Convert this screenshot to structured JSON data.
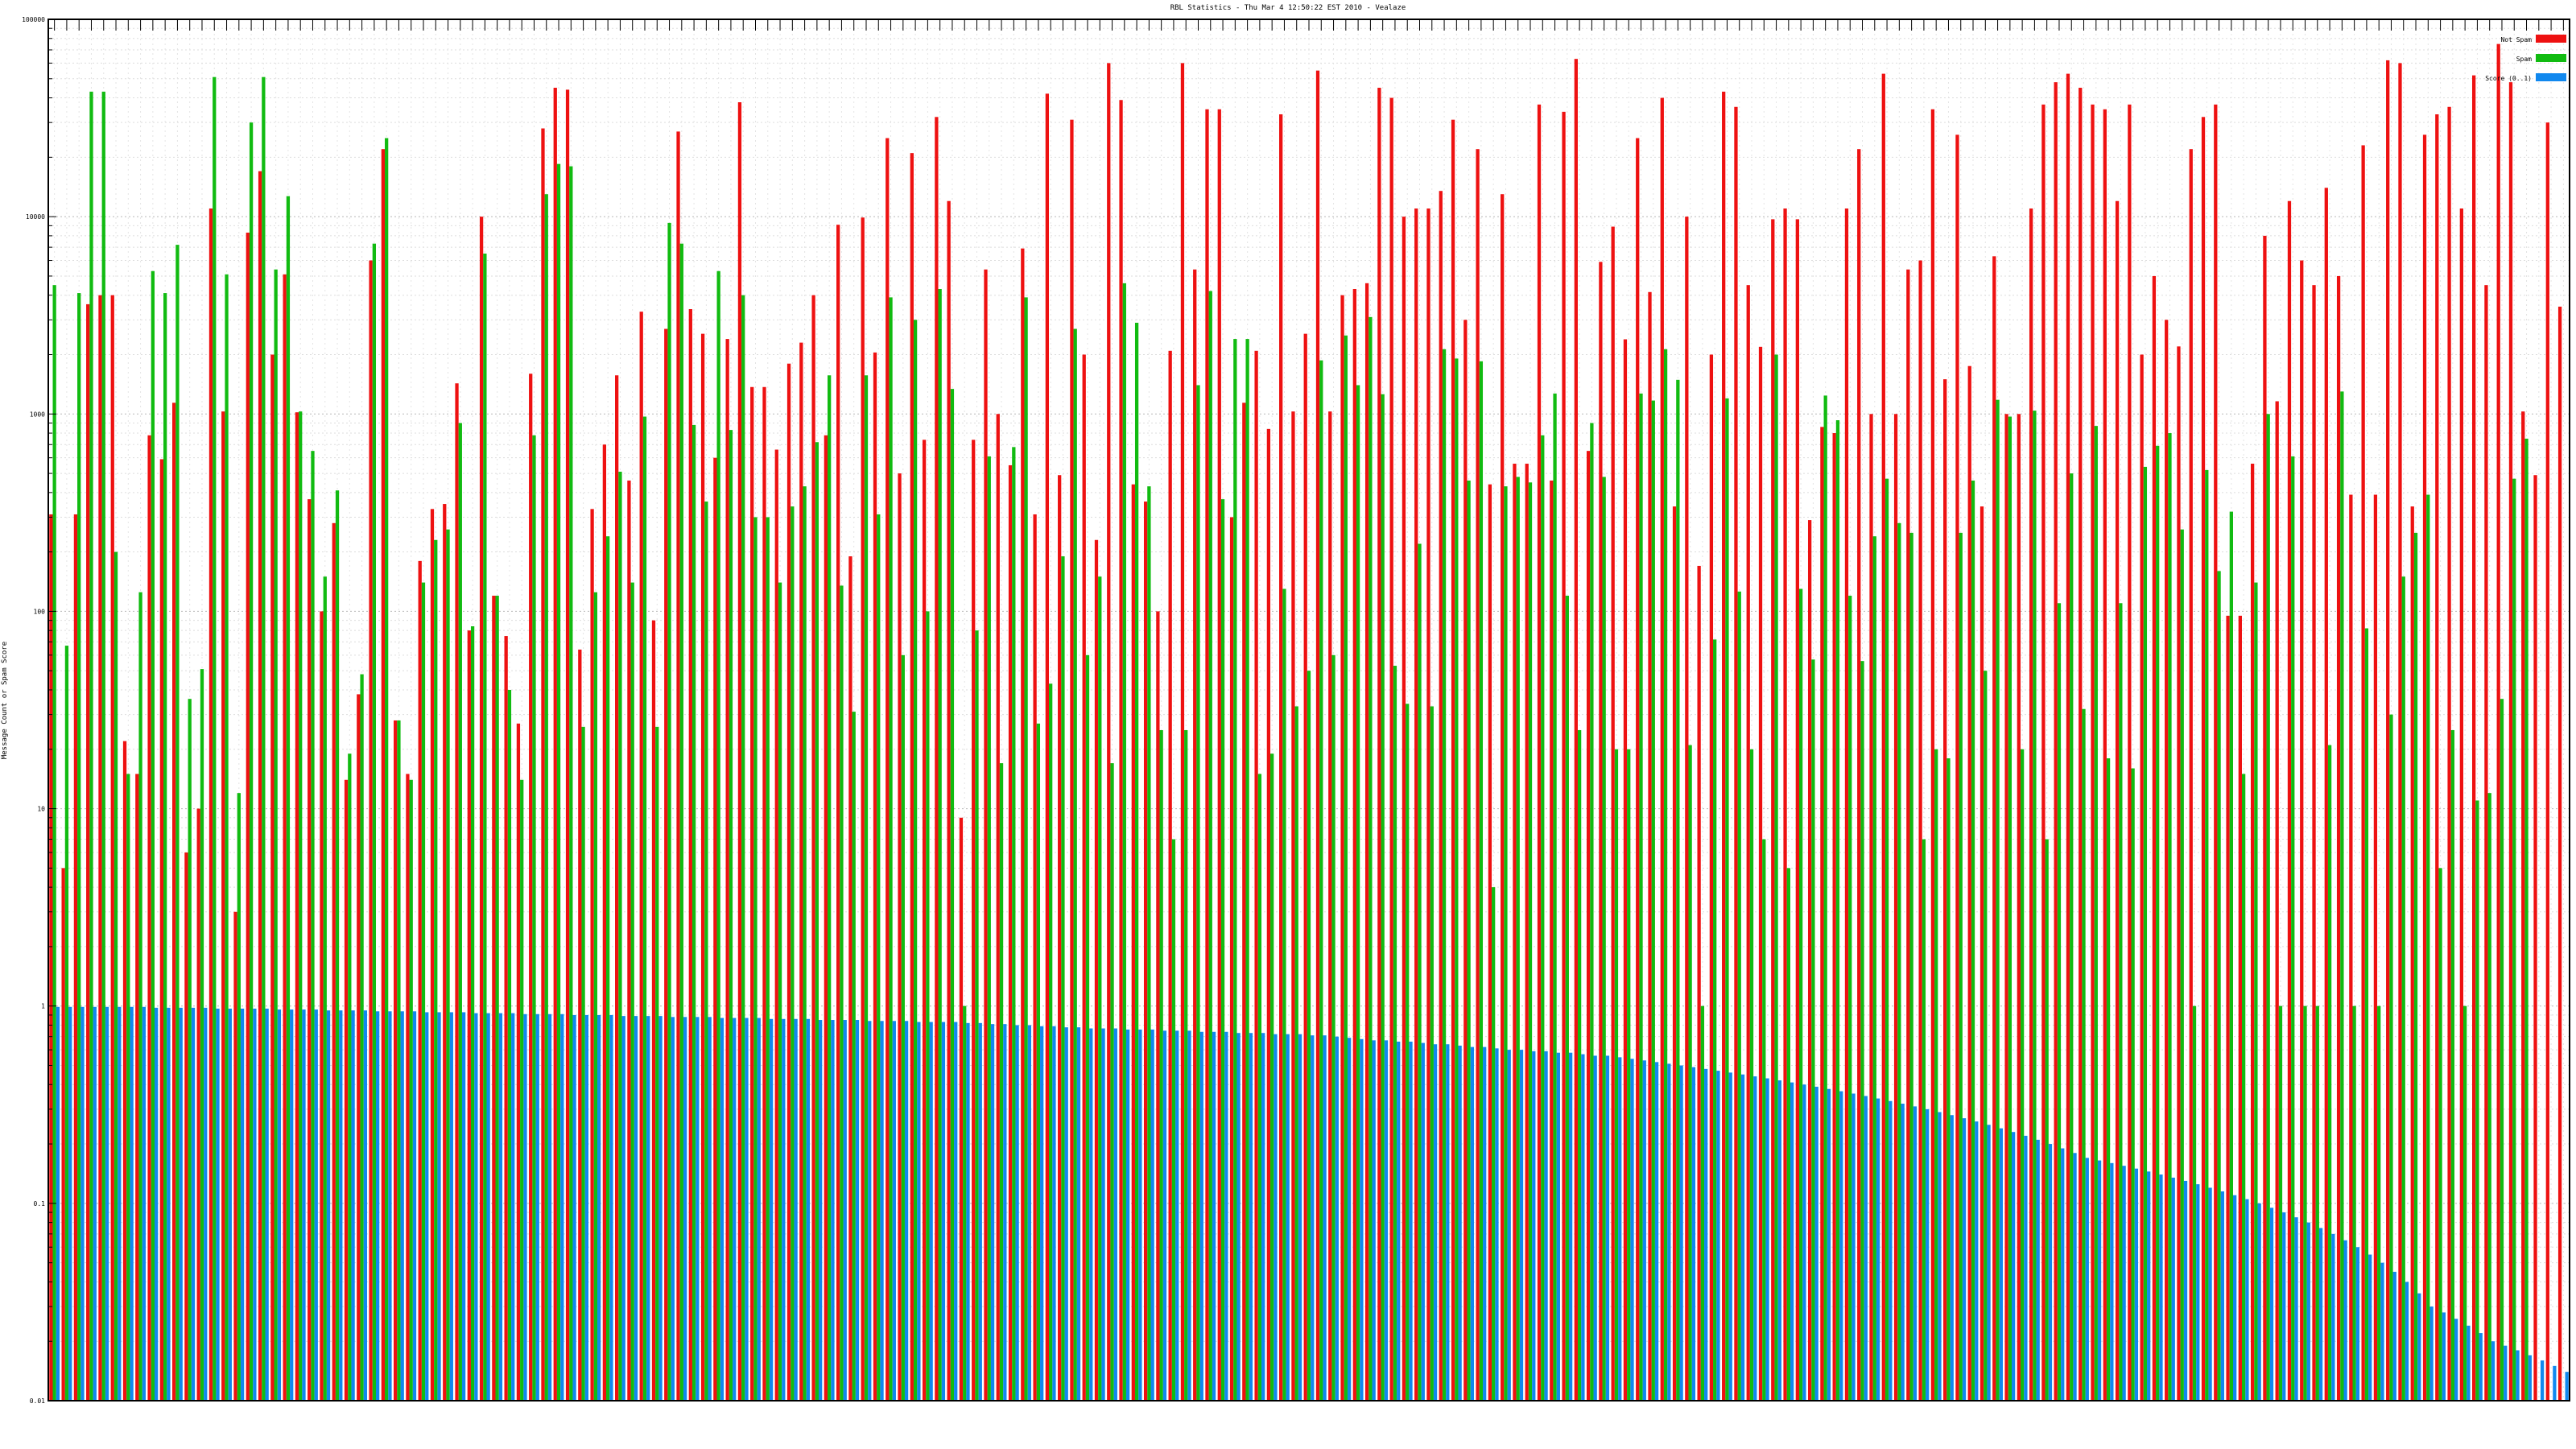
{
  "chart_data": {
    "type": "bar",
    "title": "RBL Statistics - Thu Mar  4 12:50:22 EST 2010 - Vealaze",
    "ylabel": "Message Count or Spam Score",
    "xlabel": "",
    "yscale": "log",
    "ylim": [
      0.01,
      100000
    ],
    "yticks": [
      "0.01",
      "0.1",
      "1",
      "10",
      "100",
      "1000",
      "10000",
      "100000"
    ],
    "legend_position": "top-right",
    "grid": true,
    "colors": {
      "Not Spam": "#ee1111",
      "Spam": "#11bb11",
      "Score (0..1)": "#1188ee"
    },
    "series": [
      {
        "name": "Not Spam",
        "values": [
          310,
          5,
          310,
          3600,
          4000,
          4000,
          22,
          15,
          780,
          590,
          1140,
          6,
          10,
          11000,
          1030,
          3,
          8300,
          17000,
          2000,
          5100,
          1020,
          370,
          100,
          280,
          14,
          38,
          6000,
          22000,
          28,
          15,
          180,
          330,
          350,
          1430,
          80,
          10000,
          120,
          75,
          27,
          1600,
          28000,
          45000,
          44000,
          64,
          330,
          700,
          1570,
          460,
          3300,
          90,
          2700,
          27000,
          3400,
          2550,
          600,
          2400,
          38000,
          1370,
          1370,
          660,
          1800,
          2300,
          4000,
          780,
          9100,
          190,
          9900,
          2050,
          25000,
          500,
          21000,
          740,
          32000,
          12000,
          9,
          740,
          5400,
          1000,
          550,
          6900,
          310,
          42000,
          490,
          31000,
          2000,
          230,
          60000,
          39000,
          440,
          360,
          100,
          2090,
          60000,
          5400,
          35000,
          35000,
          300,
          1140,
          2090,
          840,
          33000,
          1030,
          2550,
          55000,
          1030,
          4000,
          4300,
          4600,
          45000,
          40000,
          10000,
          11000,
          11000,
          13500,
          31000,
          3000,
          22000,
          440,
          13000,
          560,
          560,
          37000,
          460,
          34000,
          63000,
          650,
          5900,
          8900,
          2390,
          25000,
          4150,
          40000,
          340,
          10000,
          170,
          2000,
          43000,
          36000,
          4500,
          2190,
          9700,
          11000,
          9700,
          290,
          860,
          800,
          11000,
          22000,
          1000,
          53000,
          1000,
          5400,
          6000,
          35000,
          1500,
          26000,
          1750,
          340,
          6300,
          1000,
          1000,
          11000,
          37000,
          48000,
          53000,
          45000,
          37000,
          35000,
          12000,
          37000,
          2000,
          5000,
          3000,
          2200,
          22000,
          32000,
          37000,
          95,
          95,
          560,
          8000,
          1160,
          12000,
          6000,
          4500,
          14000,
          5000,
          390,
          23000,
          390,
          62000,
          60000,
          340,
          26000,
          33000,
          36000,
          11000,
          52000,
          4500,
          75000,
          48000,
          1030,
          490,
          30000,
          3500
        ],
        "cap": [
          0,
          0,
          0,
          0,
          0,
          0,
          0,
          0,
          0,
          0,
          0,
          0,
          0,
          0,
          0,
          0,
          0,
          0,
          0,
          0,
          0,
          0,
          0,
          0,
          0,
          0,
          0,
          0,
          0,
          0,
          0,
          0,
          0,
          0,
          0,
          0,
          0,
          0,
          0,
          0,
          0,
          0,
          0,
          0,
          0,
          0,
          0,
          0,
          0,
          0,
          0,
          0,
          0,
          0,
          0,
          0,
          0,
          0,
          0,
          0,
          0,
          0,
          0,
          0,
          0,
          0,
          0,
          0,
          0,
          0,
          0,
          0,
          0,
          0,
          0,
          0,
          0,
          0,
          0,
          0,
          0,
          0,
          0,
          0,
          0,
          0,
          0,
          0,
          0,
          0,
          0,
          0,
          0,
          0,
          0,
          0,
          0,
          0,
          0,
          0,
          0,
          0,
          0,
          0,
          0,
          0,
          0,
          0,
          0,
          0,
          0,
          0,
          0,
          0,
          0,
          0,
          0,
          0,
          0,
          0,
          0,
          0,
          0,
          0,
          0,
          0,
          0,
          0,
          0,
          0,
          0,
          0,
          0,
          0,
          0,
          0,
          0,
          0,
          0,
          0,
          0,
          0,
          0,
          0,
          0,
          0,
          0,
          0,
          0,
          0,
          0,
          0,
          0,
          0,
          0,
          0,
          0,
          0,
          0,
          0,
          0,
          0,
          0,
          0,
          0,
          0,
          0,
          0,
          0,
          0,
          0,
          0,
          0,
          0,
          0,
          0,
          0,
          0,
          0,
          0,
          0,
          0,
          0,
          0,
          0,
          0,
          0,
          0,
          0,
          0,
          0,
          0,
          0,
          0,
          0,
          0,
          0,
          0,
          0,
          0,
          0,
          0,
          0,
          0,
          0,
          0,
          0,
          0,
          0,
          0,
          0,
          0,
          0
        ]
      },
      {
        "name": "Spam",
        "values": [
          4500,
          67,
          4100,
          43000,
          43000,
          200,
          15,
          125,
          5300,
          4100,
          7200,
          36,
          51,
          51000,
          5100,
          12,
          30000,
          51000,
          5400,
          12700,
          1030,
          650,
          150,
          410,
          19,
          48,
          7300,
          25000,
          28,
          14,
          140,
          230,
          260,
          900,
          84,
          6500,
          120,
          40,
          14,
          780,
          13000,
          18500,
          18000,
          26,
          125,
          240,
          510,
          140,
          970,
          26,
          9300,
          7300,
          880,
          360,
          5300,
          830,
          4000,
          300,
          300,
          140,
          340,
          430,
          720,
          1570,
          135,
          31,
          1570,
          310,
          3900,
          60,
          3000,
          100,
          4300,
          1340,
          1,
          80,
          610,
          17,
          680,
          3900,
          27,
          43,
          190,
          2700,
          60,
          150,
          17,
          4600,
          2900,
          430,
          25,
          7,
          25,
          1400,
          4200,
          370,
          2400,
          2400,
          15,
          19,
          130,
          33,
          50,
          1870,
          60,
          2500,
          1400,
          3100,
          1260,
          53,
          34,
          220,
          33,
          2130,
          1910,
          460,
          1850,
          4,
          430,
          480,
          450,
          780,
          1270,
          120,
          25,
          900,
          480,
          20,
          20,
          1270,
          1170,
          2130,
          1490,
          21,
          1,
          72,
          1200,
          126,
          20,
          7,
          2000,
          5,
          130,
          57,
          1240,
          930,
          120,
          56,
          240,
          470,
          280,
          250,
          7,
          20,
          18,
          250,
          460,
          50,
          1180,
          970,
          20,
          1040,
          7,
          110,
          500,
          32,
          870,
          18,
          110,
          16,
          540,
          690,
          800,
          260,
          1,
          520,
          160,
          320,
          15,
          140,
          1000,
          1,
          610,
          1,
          1,
          21,
          1300,
          1,
          82,
          1,
          30,
          150,
          250,
          390,
          5,
          25,
          1,
          11,
          12,
          36,
          470,
          750,
          0,
          0,
          0,
          0,
          0,
          0,
          0,
          0,
          0,
          0,
          0,
          0,
          0,
          0,
          0
        ]
      },
      {
        "name": "Score (0..1)",
        "values": [
          0.99,
          0.99,
          0.99,
          0.99,
          0.99,
          0.99,
          0.99,
          0.99,
          0.98,
          0.98,
          0.98,
          0.98,
          0.98,
          0.97,
          0.97,
          0.97,
          0.97,
          0.97,
          0.96,
          0.96,
          0.96,
          0.96,
          0.95,
          0.95,
          0.95,
          0.95,
          0.94,
          0.94,
          0.94,
          0.94,
          0.93,
          0.93,
          0.93,
          0.93,
          0.92,
          0.92,
          0.92,
          0.92,
          0.91,
          0.91,
          0.91,
          0.91,
          0.9,
          0.9,
          0.9,
          0.9,
          0.89,
          0.89,
          0.89,
          0.89,
          0.88,
          0.88,
          0.88,
          0.88,
          0.87,
          0.87,
          0.87,
          0.87,
          0.86,
          0.86,
          0.86,
          0.86,
          0.85,
          0.85,
          0.85,
          0.85,
          0.84,
          0.84,
          0.84,
          0.84,
          0.83,
          0.83,
          0.83,
          0.83,
          0.82,
          0.82,
          0.81,
          0.81,
          0.8,
          0.8,
          0.79,
          0.79,
          0.78,
          0.78,
          0.77,
          0.77,
          0.77,
          0.76,
          0.76,
          0.76,
          0.75,
          0.75,
          0.75,
          0.74,
          0.74,
          0.74,
          0.73,
          0.73,
          0.73,
          0.72,
          0.72,
          0.72,
          0.71,
          0.71,
          0.7,
          0.69,
          0.68,
          0.67,
          0.67,
          0.66,
          0.66,
          0.65,
          0.64,
          0.64,
          0.63,
          0.62,
          0.62,
          0.61,
          0.6,
          0.6,
          0.59,
          0.59,
          0.58,
          0.58,
          0.57,
          0.56,
          0.56,
          0.55,
          0.54,
          0.53,
          0.52,
          0.51,
          0.5,
          0.49,
          0.48,
          0.47,
          0.46,
          0.45,
          0.44,
          0.43,
          0.42,
          0.41,
          0.4,
          0.39,
          0.38,
          0.37,
          0.36,
          0.35,
          0.34,
          0.33,
          0.32,
          0.31,
          0.3,
          0.29,
          0.28,
          0.27,
          0.26,
          0.25,
          0.24,
          0.23,
          0.22,
          0.21,
          0.2,
          0.19,
          0.18,
          0.17,
          0.165,
          0.16,
          0.155,
          0.15,
          0.145,
          0.14,
          0.135,
          0.13,
          0.125,
          0.12,
          0.115,
          0.11,
          0.105,
          0.1,
          0.095,
          0.09,
          0.085,
          0.08,
          0.075,
          0.07,
          0.065,
          0.06,
          0.055,
          0.05,
          0.045,
          0.04,
          0.035,
          0.03,
          0.028,
          0.026,
          0.024,
          0.022,
          0.02,
          0.019,
          0.018,
          0.017,
          0.016,
          0.015,
          0.014,
          0.013,
          0.012,
          0.011,
          0.0105,
          0.0102,
          0.0101,
          0.01,
          0.01,
          0.01,
          0.01
        ]
      }
    ]
  }
}
